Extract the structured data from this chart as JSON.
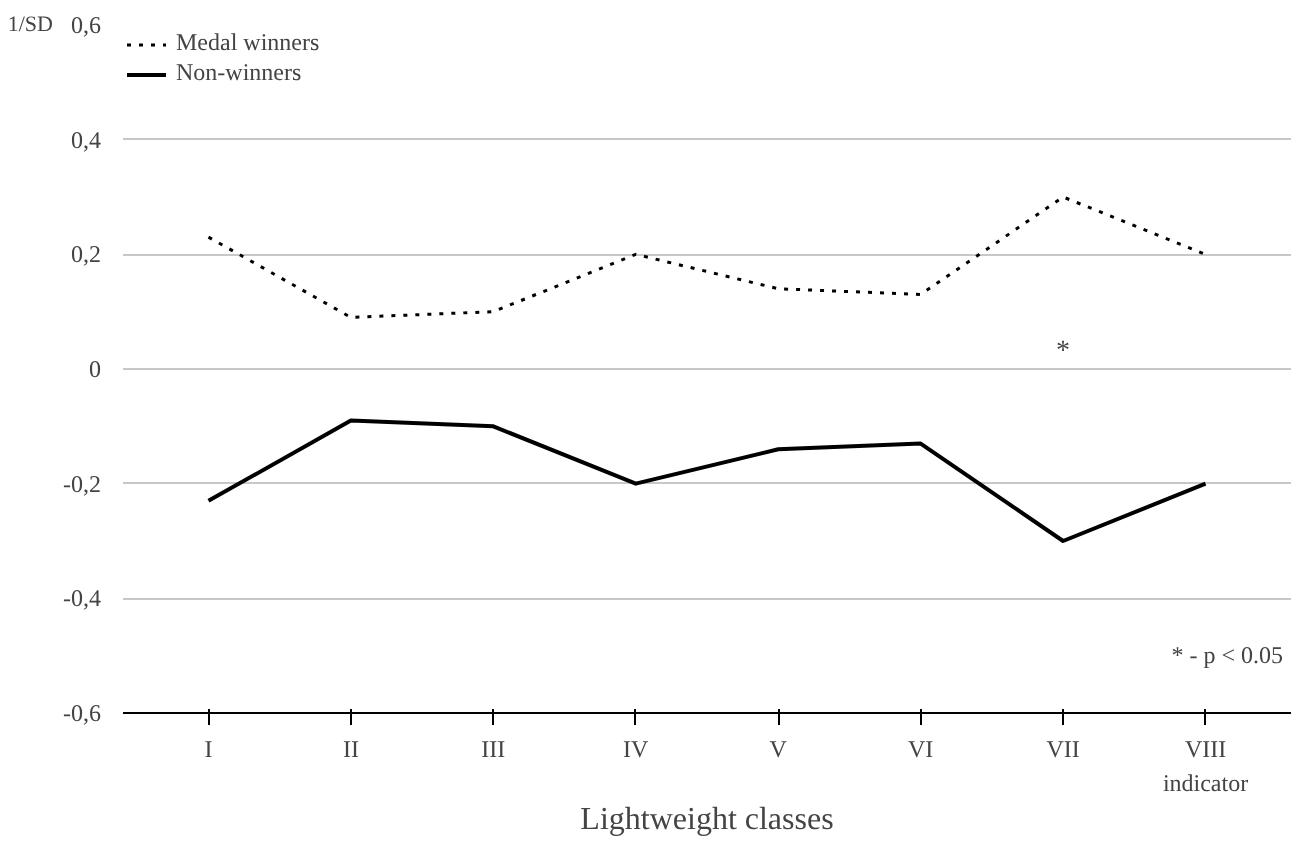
{
  "chart_data": {
    "type": "line",
    "xlabel": "Lightweight classes",
    "ylabel": "1/SD",
    "categories": [
      "I",
      "II",
      "III",
      "IV",
      "V",
      "VI",
      "VII",
      "VIII\nindicator"
    ],
    "series": [
      {
        "name": "Medal winners",
        "color": "#000000",
        "line_style": "dotted",
        "values": [
          0.23,
          0.09,
          0.1,
          0.2,
          0.14,
          0.13,
          0.3,
          0.2
        ]
      },
      {
        "name": "Non-winners",
        "color": "#000000",
        "line_style": "solid",
        "values": [
          -0.23,
          -0.09,
          -0.1,
          -0.2,
          -0.14,
          -0.13,
          -0.3,
          -0.2
        ]
      }
    ],
    "ylim": [
      -0.6,
      0.6
    ],
    "yticks": [
      {
        "value": -0.6,
        "label": "-0,6"
      },
      {
        "value": -0.4,
        "label": "-0,4"
      },
      {
        "value": -0.2,
        "label": "-0,2"
      },
      0,
      {
        "value": 0.2,
        "label": "0,2"
      },
      {
        "value": 0.4,
        "label": "0,4"
      },
      {
        "value": 0.6,
        "label": "0,6"
      }
    ],
    "grid": "y",
    "legend": "top left",
    "marker": "none",
    "annotations": [
      "*",
      "* - p < 0.05"
    ]
  }
}
